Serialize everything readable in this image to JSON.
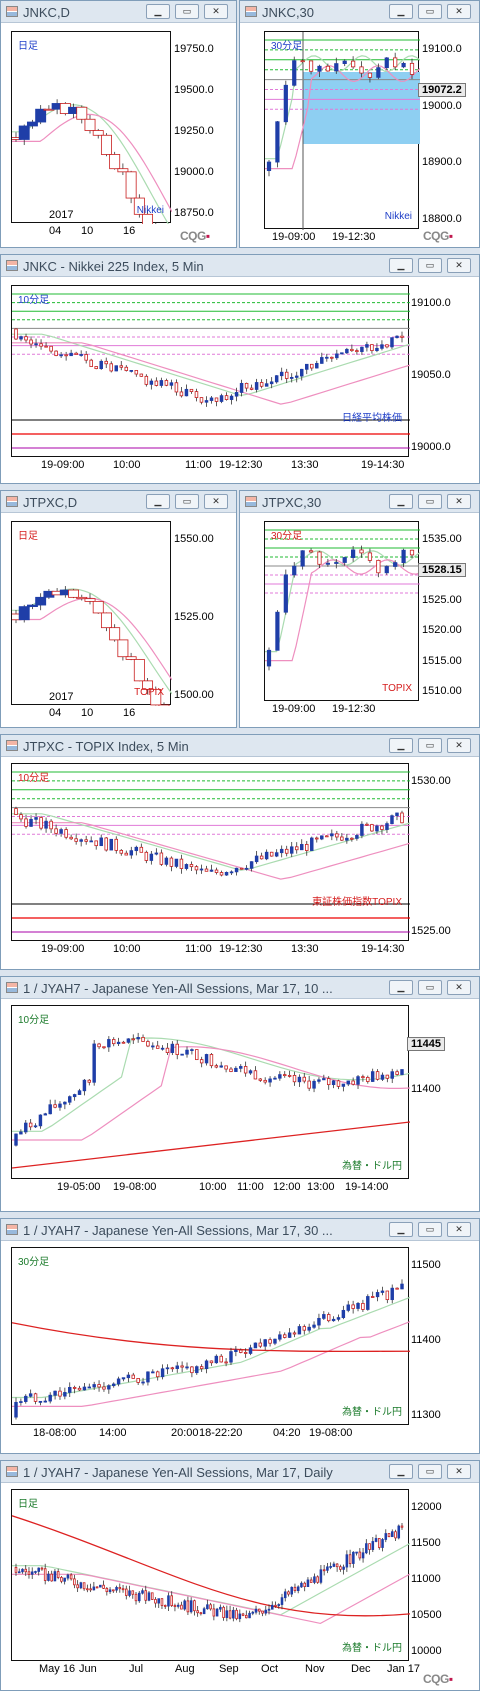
{
  "brand": "CQG",
  "windows": [
    {
      "title": "JNKC,D",
      "label": "日足",
      "label_color": "#1e3ec8",
      "name": "Nikkei",
      "name_color": "#1e3ec8",
      "yticks": [
        "19750.0",
        "19500.0",
        "19250.0",
        "19000.0",
        "18750.0"
      ],
      "xticks": [
        "2017",
        "04",
        "10",
        "16"
      ]
    },
    {
      "title": "JNKC,30",
      "label": "30分足",
      "label_color": "#1e3ec8",
      "name": "Nikkei",
      "name_color": "#1e3ec8",
      "yticks": [
        "19100.0",
        "19000.0",
        "18900.0",
        "18800.0"
      ],
      "last_price": "19072.2",
      "xticks": [
        "19-09:00",
        "19-12:30"
      ]
    },
    {
      "title": "JNKC - Nikkei 225 Index, 5 Min",
      "label": "10分足",
      "label_color": "#1e3ec8",
      "name": "日経平均株価",
      "name_color": "#1e3ec8",
      "yticks": [
        "19100.0",
        "19050.0",
        "19000.0"
      ],
      "xticks": [
        "19-09:00",
        "10:00",
        "11:00",
        "19-12:30",
        "13:30",
        "19-14:30"
      ]
    },
    {
      "title": "JTPXC,D",
      "label": "日足",
      "label_color": "#d51d1d",
      "name": "TOPIX",
      "name_color": "#d51d1d",
      "yticks": [
        "1550.00",
        "1525.00",
        "1500.00"
      ],
      "xticks": [
        "2017",
        "04",
        "10",
        "16"
      ]
    },
    {
      "title": "JTPXC,30",
      "label": "30分足",
      "label_color": "#d51d1d",
      "name": "TOPIX",
      "name_color": "#d51d1d",
      "yticks": [
        "1535.00",
        "1530.00",
        "1525.00",
        "1520.00",
        "1515.00",
        "1510.00"
      ],
      "last_price": "1528.15",
      "xticks": [
        "19-09:00",
        "19-12:30"
      ]
    },
    {
      "title": "JTPXC - TOPIX Index, 5 Min",
      "label": "10分足",
      "label_color": "#d51d1d",
      "name": "東証株価指数TOPIX",
      "name_color": "#d51d1d",
      "yticks": [
        "1530.00",
        "1525.00"
      ],
      "xticks": [
        "19-09:00",
        "10:00",
        "11:00",
        "19-12:30",
        "13:30",
        "19-14:30"
      ]
    },
    {
      "title": "1 / JYAH7 - Japanese Yen-All Sessions, Mar 17, 10 ...",
      "label": "10分足",
      "label_color": "#1a7a2a",
      "name": "為替・ドル円",
      "name_color": "#1a7a2a",
      "yticks": [
        "11400"
      ],
      "last_price": "11445",
      "xticks": [
        "19-05:00",
        "19-08:00",
        "10:00",
        "11:00",
        "12:00",
        "13:00",
        "19-14:00"
      ]
    },
    {
      "title": "1 / JYAH7 - Japanese Yen-All Sessions, Mar 17, 30 ...",
      "label": "30分足",
      "label_color": "#1a7a2a",
      "name": "為替・ドル円",
      "name_color": "#1a7a2a",
      "yticks": [
        "11500",
        "11400",
        "11300"
      ],
      "xticks": [
        "18-08:00",
        "14:00",
        "20:00",
        "18-22:20",
        "04:20",
        "19-08:00"
      ]
    },
    {
      "title": "1 / JYAH7 - Japanese Yen-All Sessions, Mar 17, Daily",
      "label": "日足",
      "label_color": "#1a7a2a",
      "name": "為替・ドル円",
      "name_color": "#1a7a2a",
      "yticks": [
        "12000",
        "11500",
        "11000",
        "10500",
        "10000"
      ],
      "xticks": [
        "May 16",
        "Jun",
        "Jul",
        "Aug",
        "Sep",
        "Oct",
        "Nov",
        "Dec",
        "Jan 17"
      ]
    }
  ],
  "buttons": {
    "minimize": "▁",
    "restore": "▭",
    "close": "✕"
  }
}
